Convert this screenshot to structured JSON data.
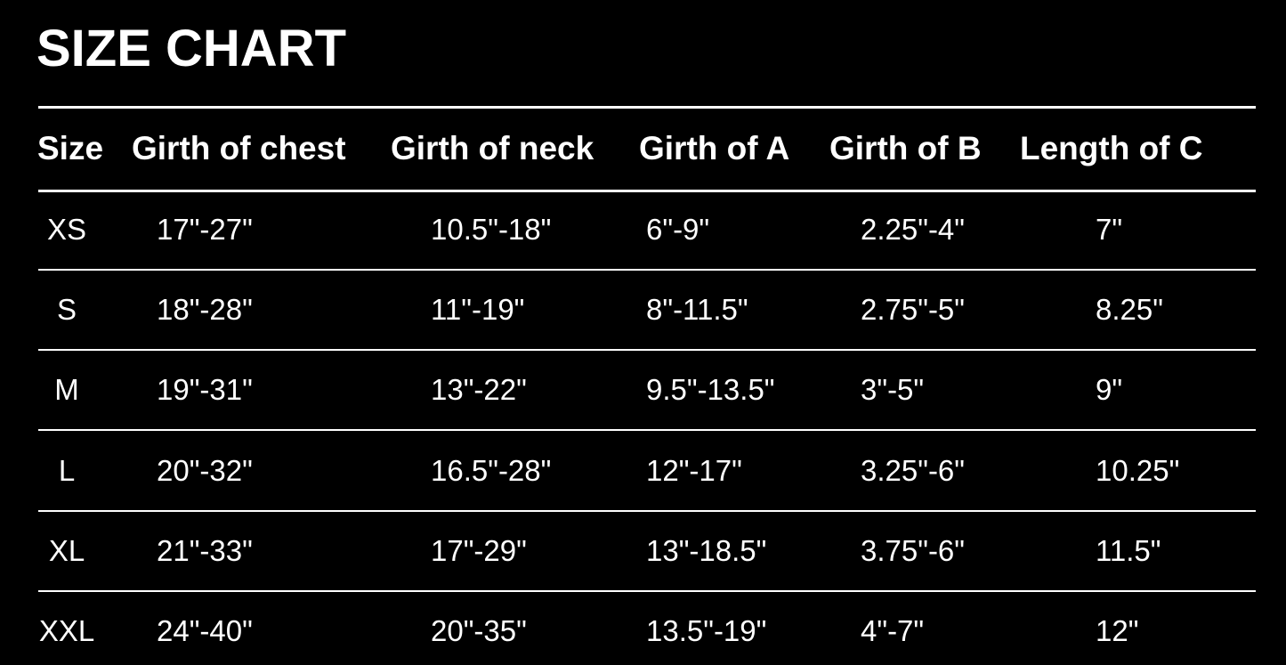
{
  "title": "SIZE CHART",
  "headers": [
    "Size",
    "Girth of chest",
    "Girth of neck",
    "Girth of A",
    "Girth of B",
    "Length of C"
  ],
  "rows": [
    [
      "XS",
      "17\"-27\"",
      "10.5\"-18\"",
      "6\"-9\"",
      "2.25\"-4\"",
      "7\""
    ],
    [
      "S",
      "18\"-28\"",
      "11\"-19\"",
      "8\"-11.5\"",
      "2.75\"-5\"",
      "8.25\""
    ],
    [
      "M",
      "19\"-31\"",
      "13\"-22\"",
      "9.5\"-13.5\"",
      "3\"-5\"",
      "9\""
    ],
    [
      "L",
      "20\"-32\"",
      "16.5\"-28\"",
      "12\"-17\"",
      "3.25\"-6\"",
      "10.25\""
    ],
    [
      "XL",
      "21\"-33\"",
      "17\"-29\"",
      "13\"-18.5\"",
      "3.75\"-6\"",
      "11.5\""
    ],
    [
      "XXL",
      "24\"-40\"",
      "20\"-35\"",
      "13.5\"-19\"",
      "4\"-7\"",
      "12\""
    ]
  ]
}
